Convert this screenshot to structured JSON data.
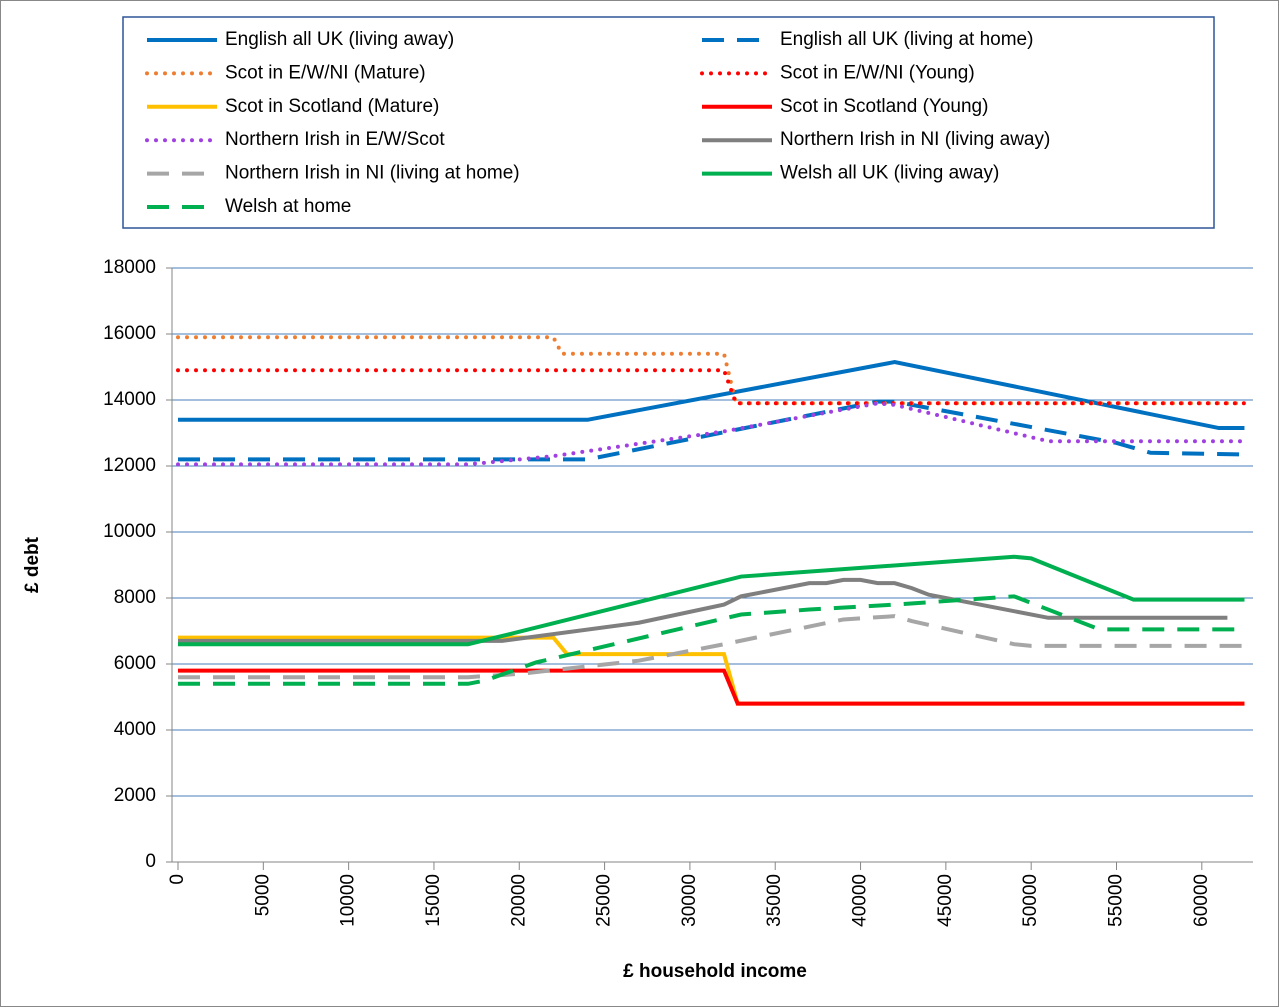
{
  "chart_data": {
    "type": "line",
    "x_label": "£ household income",
    "y_label": "£ debt",
    "xlim": [
      0,
      63000
    ],
    "xticks": [
      0,
      5000,
      10000,
      15000,
      20000,
      25000,
      30000,
      35000,
      40000,
      45000,
      50000,
      55000,
      60000
    ],
    "ylim": [
      0,
      18000
    ],
    "yticks": [
      0,
      2000,
      4000,
      6000,
      8000,
      10000,
      12000,
      14000,
      16000,
      18000
    ],
    "grid": true,
    "legend": "top",
    "series": [
      {
        "name": "English all UK (living away)",
        "color": "#0070c0",
        "style": "solid",
        "x": [
          0,
          24000,
          42000,
          61000,
          62500
        ],
        "values": [
          13400,
          13400,
          15150,
          13150,
          13150
        ]
      },
      {
        "name": "English all UK (living at home)",
        "color": "#0070c0",
        "style": "dashed",
        "x": [
          0,
          24000,
          41000,
          42000,
          55000,
          57000,
          62500
        ],
        "values": [
          12200,
          12200,
          13950,
          13950,
          12700,
          12400,
          12350
        ]
      },
      {
        "name": "Scot in E/W/NI (Mature)",
        "color": "#ed7d31",
        "style": "dotted",
        "x": [
          0,
          22000,
          22500,
          32000,
          32700,
          62500
        ],
        "values": [
          15900,
          15900,
          15400,
          15400,
          13900,
          13900
        ]
      },
      {
        "name": "Scot in E/W/NI (Young)",
        "color": "#ff0000",
        "style": "dotted",
        "x": [
          0,
          32000,
          32700,
          62500
        ],
        "values": [
          14900,
          14900,
          13900,
          13900
        ]
      },
      {
        "name": "Scot in Scotland (Mature)",
        "color": "#ffc000",
        "style": "solid",
        "x": [
          0,
          22000,
          22800,
          32000,
          32800,
          62500
        ],
        "values": [
          6800,
          6800,
          6300,
          6300,
          4800,
          4800
        ]
      },
      {
        "name": "Scot in Scotland (Young)",
        "color": "#ff0000",
        "style": "solid",
        "x": [
          0,
          32000,
          32800,
          62500
        ],
        "values": [
          5800,
          5800,
          4800,
          4800
        ]
      },
      {
        "name": "Northern Irish in E/W/Scot",
        "color": "#a040e0",
        "style": "dotted",
        "x": [
          0,
          17000,
          22000,
          32000,
          41000,
          42000,
          51000,
          62500
        ],
        "values": [
          12050,
          12050,
          12300,
          13050,
          13900,
          13850,
          12750,
          12750
        ]
      },
      {
        "name": "Northern Irish in NI (living away)",
        "color": "#7f7f7f",
        "style": "solid",
        "x": [
          0,
          19000,
          27000,
          32000,
          33000,
          37000,
          38000,
          39000,
          40000,
          41000,
          42000,
          43000,
          44000,
          51000,
          61500
        ],
        "values": [
          6700,
          6700,
          7250,
          7800,
          8050,
          8450,
          8450,
          8550,
          8550,
          8450,
          8450,
          8300,
          8100,
          7400,
          7400
        ]
      },
      {
        "name": "Northern Irish in NI (living at home)",
        "color": "#a6a6a6",
        "style": "dashed",
        "x": [
          0,
          17000,
          20000,
          27000,
          32000,
          39000,
          42000,
          43000,
          49000,
          50000,
          62500
        ],
        "values": [
          5600,
          5600,
          5700,
          6100,
          6600,
          7350,
          7450,
          7300,
          6600,
          6550,
          6550
        ]
      },
      {
        "name": "Welsh all UK (living away)",
        "color": "#00b050",
        "style": "solid",
        "x": [
          0,
          17000,
          19000,
          33000,
          49000,
          50000,
          56000,
          62500
        ],
        "values": [
          6600,
          6600,
          6850,
          8650,
          9250,
          9200,
          7950,
          7950
        ]
      },
      {
        "name": "Welsh at home",
        "color": "#00b050",
        "style": "dashed",
        "x": [
          0,
          17000,
          18000,
          21000,
          33000,
          37000,
          42000,
          49000,
          54000,
          62500
        ],
        "values": [
          5400,
          5400,
          5500,
          6050,
          7500,
          7650,
          7800,
          8050,
          7050,
          7050
        ]
      }
    ]
  }
}
